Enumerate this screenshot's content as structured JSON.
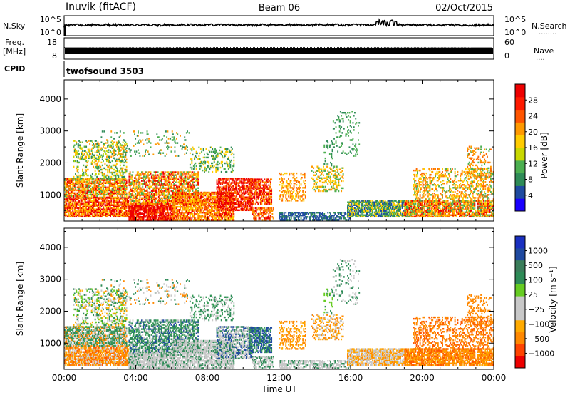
{
  "header": {
    "station": "Inuvik (fitACF)",
    "beam": "Beam 06",
    "date": "02/Oct/2015"
  },
  "top_panels": {
    "nsky": {
      "left_label": "N.Sky",
      "left_ticks": [
        "10^5",
        "10^0"
      ],
      "right_ticks": [
        "10^5",
        "10^0"
      ],
      "right_label": "N.Search",
      "right_dots": "........"
    },
    "freq": {
      "left_label_1": "Freq.",
      "left_label_2": "[MHz]",
      "left_ticks": [
        "18",
        "8"
      ],
      "right_ticks": [
        "60",
        "0"
      ],
      "right_label": "Nave",
      "right_dots": "...."
    },
    "cpid": {
      "label": "CPID",
      "value": "twofsound 3503"
    }
  },
  "colors": {
    "power_scale": [
      "#1a00ff",
      "#1f4aa0",
      "#2e8b57",
      "#4caf50",
      "#c8d800",
      "#ffcc00",
      "#ff9900",
      "#ff5500",
      "#ff1a00",
      "#ee0000"
    ],
    "velocity_scale": [
      "#ee0000",
      "#ff4400",
      "#ff8800",
      "#ffaa00",
      "#c8c8c8",
      "#c8c8c8",
      "#66cc22",
      "#2e8b57",
      "#3a7d5a",
      "#1f4aa0",
      "#1a30c0"
    ]
  },
  "chart_data": [
    {
      "type": "heatmap",
      "name": "power",
      "ylabel": "Slant Range [km]",
      "yticks": [
        1000,
        2000,
        3000,
        4000
      ],
      "ylim": [
        180,
        4600
      ],
      "xlim": [
        0,
        24
      ],
      "colorbar_label": "Power [dB]",
      "colorbar_ticks": [
        "28",
        "24",
        "20",
        "16",
        "12",
        "8",
        "4"
      ],
      "colorbar_range": [
        0,
        32
      ]
    },
    {
      "type": "heatmap",
      "name": "velocity",
      "ylabel": "Slant Range [km]",
      "yticks": [
        1000,
        2000,
        3000,
        4000
      ],
      "ylim": [
        180,
        4600
      ],
      "xlim": [
        0,
        24
      ],
      "xticks": [
        "00:00",
        "04:00",
        "08:00",
        "12:00",
        "16:00",
        "20:00",
        "00:00"
      ],
      "xlabel": "Time UT",
      "colorbar_label": "Velocity [m s⁻¹]",
      "colorbar_ticks": [
        "1000",
        "500",
        "100",
        "25",
        "−25",
        "−100",
        "−500",
        "−1000"
      ]
    }
  ]
}
